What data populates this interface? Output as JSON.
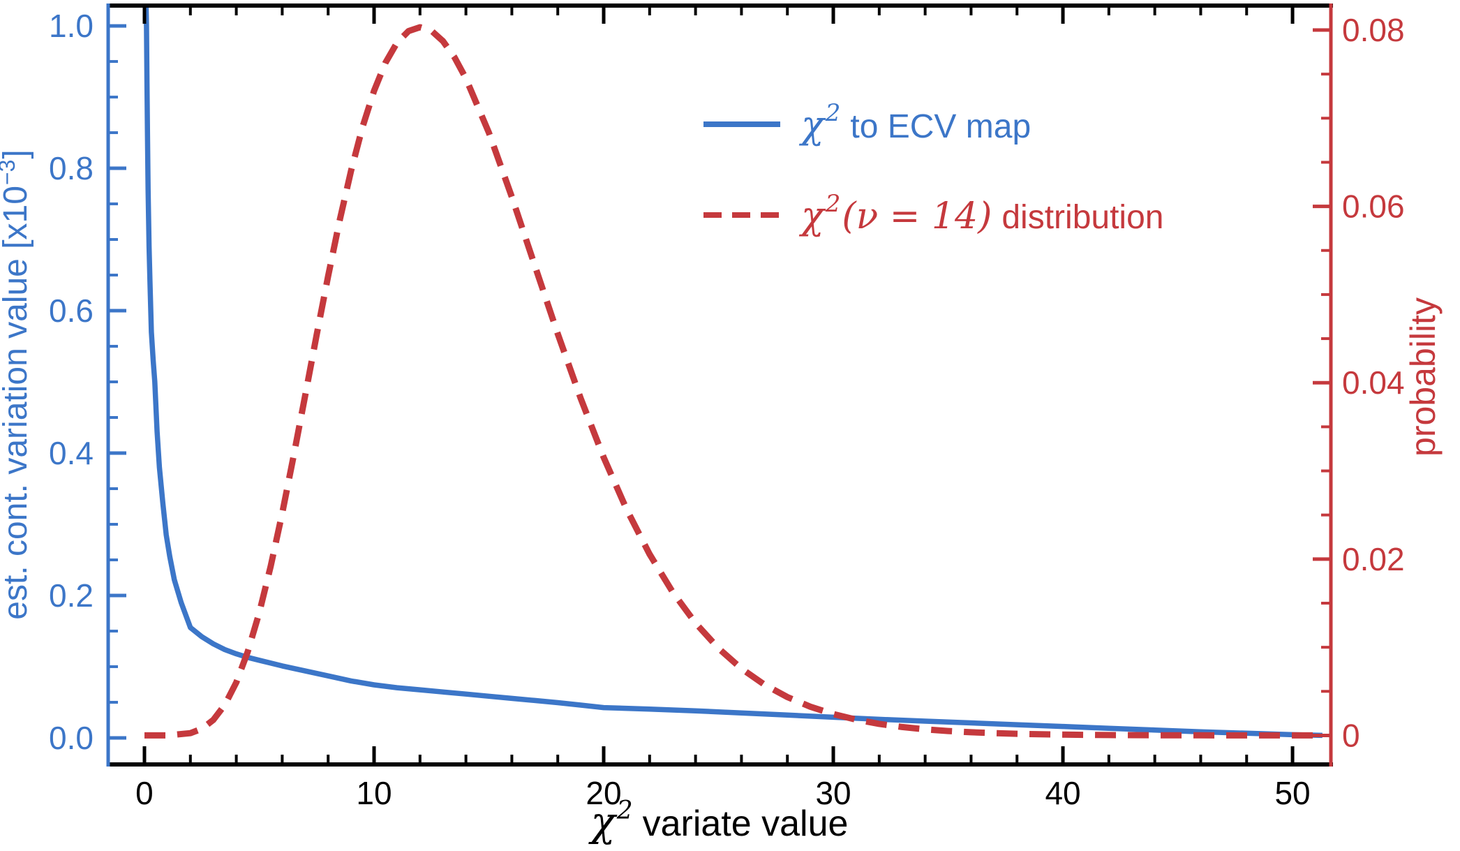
{
  "chart_data": {
    "type": "line",
    "title": "",
    "grid": false,
    "legend_position": "upper-center-right, no frame",
    "x_axis": {
      "label_math": "χ",
      "label_sup": "2",
      "label_rest": "variate value",
      "color": "#000000",
      "range": [
        -1.58,
        51.67
      ],
      "major_ticks": [
        0,
        10,
        20,
        30,
        40,
        50
      ],
      "tick_labels": [
        "0",
        "10",
        "20",
        "30",
        "40",
        "50"
      ],
      "minor_tick_step": 2
    },
    "y_left": {
      "label_pre": "est. cont. variation value [x10",
      "label_sup": "−3",
      "label_post": "]",
      "color": "#3C76C8",
      "range": [
        -0.0373,
        1.0285
      ],
      "major_ticks": [
        0,
        0.2,
        0.4,
        0.6,
        0.8,
        1.0
      ],
      "tick_labels": [
        "0.0",
        "0.2",
        "0.4",
        "0.6",
        "0.8",
        "1.0"
      ],
      "minor_tick_step": 0.05
    },
    "y_right": {
      "label": "probability",
      "color": "#C5393D",
      "range": [
        -0.00329,
        0.08277
      ],
      "major_ticks": [
        0,
        0.02,
        0.04,
        0.06,
        0.08
      ],
      "tick_labels": [
        "0",
        "0.02",
        "0.04",
        "0.06",
        "0.08"
      ],
      "minor_tick_step": 0.005
    },
    "series": [
      {
        "name": "χ² to ECV map",
        "axis": "left",
        "style": "solid",
        "color": "#3C76C8",
        "points": [
          [
            0.05,
            1.05
          ],
          [
            0.07,
            1.03
          ],
          [
            0.09,
            1.0
          ],
          [
            0.11,
            0.92
          ],
          [
            0.13,
            0.85
          ],
          [
            0.16,
            0.77
          ],
          [
            0.2,
            0.69
          ],
          [
            0.24,
            0.64
          ],
          [
            0.3,
            0.57
          ],
          [
            0.38,
            0.53
          ],
          [
            0.45,
            0.5
          ],
          [
            0.55,
            0.43
          ],
          [
            0.65,
            0.38
          ],
          [
            0.8,
            0.33
          ],
          [
            0.95,
            0.285
          ],
          [
            1.1,
            0.255
          ],
          [
            1.3,
            0.222
          ],
          [
            1.6,
            0.19
          ],
          [
            2,
            0.155
          ],
          [
            2.5,
            0.142
          ],
          [
            3,
            0.132
          ],
          [
            3.5,
            0.124
          ],
          [
            4,
            0.118
          ],
          [
            4.5,
            0.113
          ],
          [
            5,
            0.109
          ],
          [
            6,
            0.101
          ],
          [
            7,
            0.094
          ],
          [
            8,
            0.087
          ],
          [
            9,
            0.08
          ],
          [
            10,
            0.0745
          ],
          [
            11,
            0.0705
          ],
          [
            12,
            0.0675
          ],
          [
            13,
            0.0645
          ],
          [
            14,
            0.0615
          ],
          [
            15,
            0.0585
          ],
          [
            16,
            0.0555
          ],
          [
            17,
            0.0525
          ],
          [
            18,
            0.0495
          ],
          [
            19,
            0.046
          ],
          [
            20,
            0.0425
          ],
          [
            22,
            0.0405
          ],
          [
            24,
            0.038
          ],
          [
            26,
            0.035
          ],
          [
            28,
            0.032
          ],
          [
            30,
            0.029
          ],
          [
            32,
            0.026
          ],
          [
            34,
            0.0235
          ],
          [
            36,
            0.021
          ],
          [
            38,
            0.0185
          ],
          [
            40,
            0.016
          ],
          [
            42,
            0.0135
          ],
          [
            44,
            0.011
          ],
          [
            46,
            0.0085
          ],
          [
            48,
            0.0065
          ],
          [
            50,
            0.0045
          ],
          [
            51.3,
            0.0035
          ]
        ]
      },
      {
        "name": "χ²(ν = 14) distribution",
        "axis": "right",
        "style": "dashed",
        "color": "#C5393D",
        "points": [
          [
            0,
            0
          ],
          [
            1,
            6.6e-06
          ],
          [
            2,
            0.000255
          ],
          [
            2.5,
            0.000759
          ],
          [
            3,
            0.001765
          ],
          [
            3.5,
            0.003466
          ],
          [
            4,
            0.006015
          ],
          [
            4.5,
            0.009497
          ],
          [
            5,
            0.013917
          ],
          [
            5.5,
            0.019201
          ],
          [
            6,
            0.025204
          ],
          [
            6.5,
            0.031731
          ],
          [
            7,
            0.038549
          ],
          [
            7.5,
            0.04542
          ],
          [
            8,
            0.052098
          ],
          [
            8.5,
            0.058373
          ],
          [
            9,
            0.06406
          ],
          [
            9.5,
            0.069011
          ],
          [
            10,
            0.073112
          ],
          [
            10.5,
            0.076305
          ],
          [
            11,
            0.078559
          ],
          [
            11.5,
            0.079883
          ],
          [
            12,
            0.080314
          ],
          [
            12.5,
            0.079908
          ],
          [
            13,
            0.078742
          ],
          [
            13.5,
            0.076908
          ],
          [
            14,
            0.074502
          ],
          [
            15,
            0.068359
          ],
          [
            16,
            0.061069
          ],
          [
            17,
            0.05329
          ],
          [
            18,
            0.045546
          ],
          [
            19,
            0.038211
          ],
          [
            20,
            0.031527
          ],
          [
            21,
            0.025628
          ],
          [
            22,
            0.020548
          ],
          [
            23,
            0.016272
          ],
          [
            24,
            0.012741
          ],
          [
            25,
            0.009873
          ],
          [
            26,
            0.007577
          ],
          [
            27,
            0.005763
          ],
          [
            28,
            0.004348
          ],
          [
            29,
            0.003255
          ],
          [
            30,
            0.00242
          ],
          [
            31,
            0.001787
          ],
          [
            32,
            0.001311
          ],
          [
            33,
            0.000956
          ],
          [
            34,
            0.000694
          ],
          [
            35,
            0.000501
          ],
          [
            36,
            0.00036
          ],
          [
            37,
            0.000257
          ],
          [
            38,
            0.000183
          ],
          [
            39,
            0.00013
          ],
          [
            40,
            9.2e-05
          ],
          [
            42,
            4.5e-05
          ],
          [
            44,
            2.2e-05
          ],
          [
            46,
            1.05e-05
          ],
          [
            48,
            5e-06
          ],
          [
            50,
            2.4e-06
          ],
          [
            51.3,
            1.5e-06
          ]
        ]
      }
    ],
    "legend": {
      "items": [
        {
          "math": "χ",
          "sup": "2",
          "mid": "",
          "rest": "to ECV map",
          "color": "#3C76C8",
          "line": "solid"
        },
        {
          "math": "χ",
          "sup": "2",
          "mid": "(ν = 14)",
          "rest": "distribution",
          "color": "#C5393D",
          "line": "dashed"
        }
      ]
    }
  }
}
